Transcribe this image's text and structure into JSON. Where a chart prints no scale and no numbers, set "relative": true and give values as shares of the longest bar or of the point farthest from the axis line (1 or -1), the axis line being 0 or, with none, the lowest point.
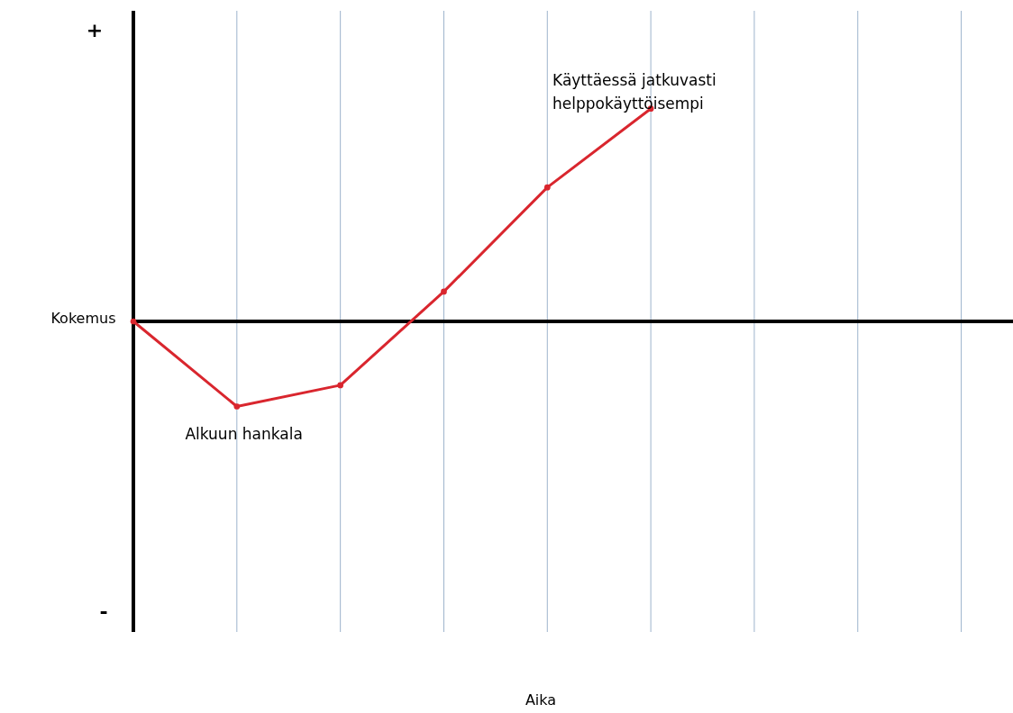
{
  "chart_data": {
    "type": "line",
    "relative": true,
    "ylabel": "Kokemus",
    "categories": [
      null,
      null,
      null,
      null,
      null,
      null,
      null,
      null,
      null
    ],
    "series": [
      {
        "color": "#d9262e",
        "values": [
          0,
          -0.4,
          -0.3,
          0.14,
          0.63,
          1.0,
          null,
          null,
          null
        ]
      }
    ],
    "annotations": [
      "+",
      "-",
      "Alkuun hankala",
      "Käyttäessä jatkuvasti\nhelppokäyttöisempi",
      "Aika"
    ],
    "grid": "x",
    "marker": "circle",
    "line_style": "solid"
  }
}
